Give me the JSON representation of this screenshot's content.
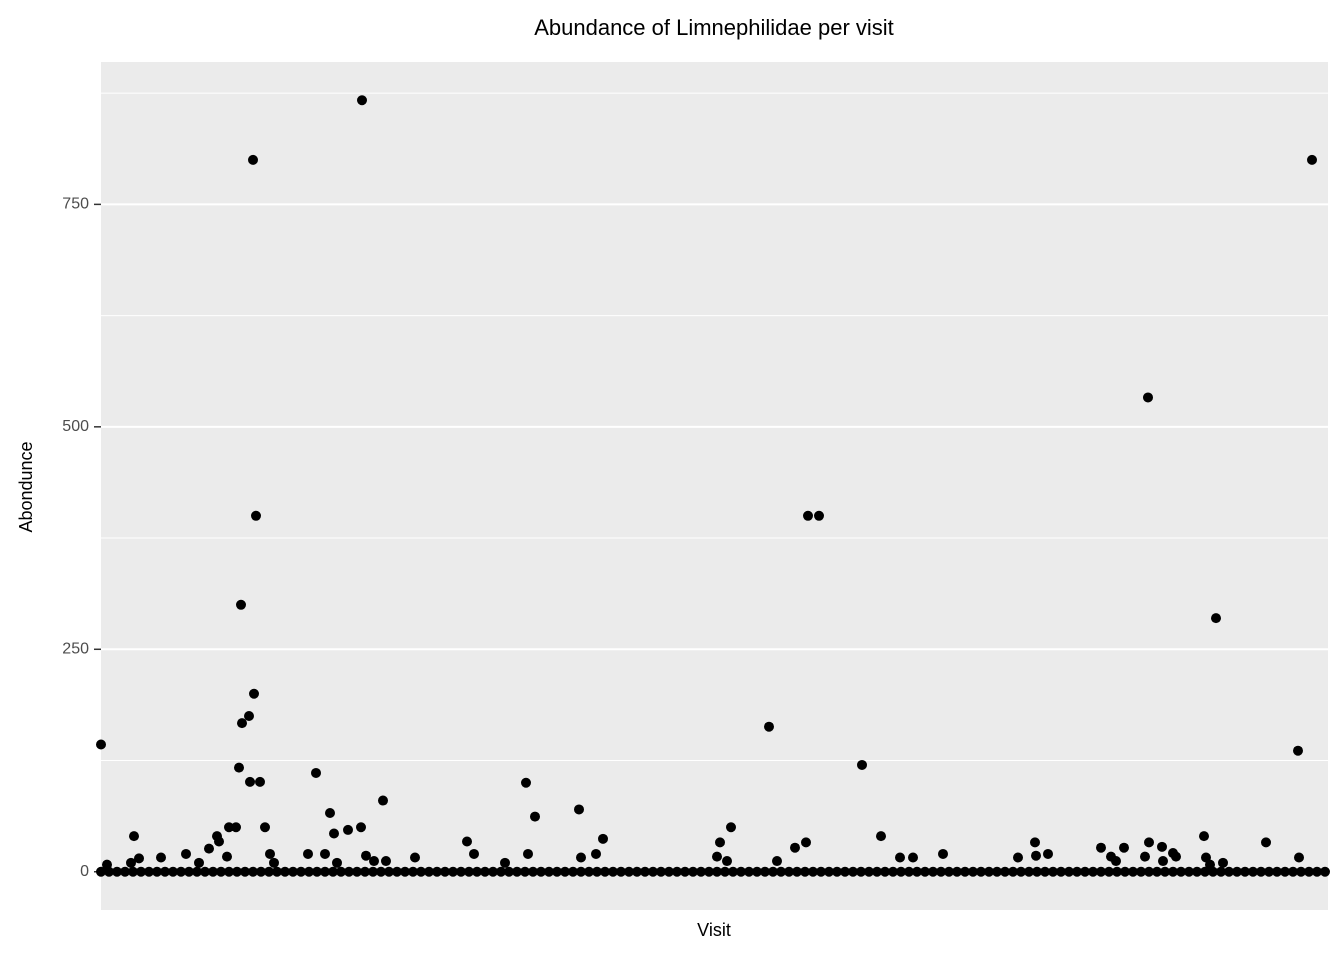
{
  "chart_data": {
    "type": "scatter",
    "title": "Abundance of Limnephilidae per visit",
    "x_label": "Visit",
    "y_label": "Abondunce",
    "color": "#000000",
    "grid": true,
    "xlim": [
      0,
      1227
    ],
    "ylim": [
      -43,
      910
    ],
    "yticks": [
      0,
      250,
      500,
      750
    ],
    "minor_yticks": [
      125,
      375,
      625,
      875
    ],
    "x": [
      0,
      152,
      261,
      1211,
      1047,
      155,
      707,
      718,
      140,
      1115,
      153,
      148,
      141,
      668,
      761,
      138,
      215,
      1197,
      149,
      159,
      425,
      282,
      478,
      229,
      434,
      128,
      135,
      164,
      260,
      630,
      247,
      233,
      33,
      116,
      780,
      1103,
      502,
      366,
      619,
      705,
      934,
      1048,
      1165,
      118,
      108,
      694,
      1000,
      1023,
      1061,
      1072,
      85,
      373,
      207,
      224,
      427,
      495,
      842,
      947,
      935,
      169,
      265,
      126,
      616,
      1010,
      1044,
      1075,
      60,
      480,
      799,
      812,
      917,
      1198,
      314,
      1105,
      6,
      38,
      30,
      98,
      173,
      285,
      404,
      626,
      676,
      1015,
      1109,
      1122,
      1062,
      273,
      236,
      0,
      8,
      16,
      24,
      32,
      40,
      48,
      56,
      64,
      72,
      80,
      88,
      96,
      104,
      112,
      120,
      128,
      136,
      144,
      152,
      160,
      168,
      176,
      184,
      192,
      200,
      208,
      216,
      224,
      232,
      240,
      248,
      256,
      264,
      272,
      280,
      288,
      296,
      304,
      312,
      320,
      328,
      336,
      344,
      352,
      360,
      368,
      376,
      384,
      392,
      400,
      408,
      416,
      424,
      432,
      440,
      448,
      456,
      464,
      472,
      480,
      488,
      496,
      504,
      512,
      520,
      528,
      536,
      544,
      552,
      560,
      568,
      576,
      584,
      592,
      600,
      608,
      616,
      624,
      632,
      640,
      648,
      656,
      664,
      672,
      680,
      688,
      696,
      704,
      712,
      720,
      728,
      736,
      744,
      752,
      760,
      768,
      776,
      784,
      792,
      800,
      808,
      816,
      824,
      832,
      840,
      848,
      856,
      864,
      872,
      880,
      888,
      896,
      904,
      912,
      920,
      928,
      936,
      944,
      952,
      960,
      968,
      976,
      984,
      992,
      1000,
      1008,
      1016,
      1024,
      1032,
      1040,
      1048,
      1056,
      1064,
      1072,
      1080,
      1088,
      1096,
      1104,
      1112,
      1120,
      1128,
      1136,
      1144,
      1152,
      1160,
      1168,
      1176,
      1184,
      1192,
      1200,
      1208,
      1216,
      1224
    ],
    "values": [
      143,
      800,
      867,
      800,
      533,
      400,
      400,
      400,
      300,
      285,
      200,
      175,
      167,
      163,
      120,
      117,
      111,
      136,
      101,
      101,
      100,
      80,
      70,
      66,
      62,
      50,
      50,
      50,
      50,
      50,
      47,
      43,
      40,
      40,
      40,
      40,
      37,
      34,
      33,
      33,
      33,
      33,
      33,
      34,
      26,
      27,
      27,
      27,
      28,
      21,
      20,
      20,
      20,
      20,
      20,
      20,
      20,
      20,
      18,
      20,
      18,
      17,
      17,
      17,
      17,
      17,
      16,
      16,
      16,
      16,
      16,
      16,
      16,
      16,
      8,
      15,
      10,
      10,
      10,
      12,
      10,
      12,
      12,
      12,
      8,
      10,
      12,
      12,
      10,
      0,
      0,
      0,
      0,
      0,
      0,
      0,
      0,
      0,
      0,
      0,
      0,
      0,
      0,
      0,
      0,
      0,
      0,
      0,
      0,
      0,
      0,
      0,
      0,
      0,
      0,
      0,
      0,
      0,
      0,
      0,
      0,
      0,
      0,
      0,
      0,
      0,
      0,
      0,
      0,
      0,
      0,
      0,
      0,
      0,
      0,
      0,
      0,
      0,
      0,
      0,
      0,
      0,
      0,
      0,
      0,
      0,
      0,
      0,
      0,
      0,
      0,
      0,
      0,
      0,
      0,
      0,
      0,
      0,
      0,
      0,
      0,
      0,
      0,
      0,
      0,
      0,
      0,
      0,
      0,
      0,
      0,
      0,
      0,
      0,
      0,
      0,
      0,
      0,
      0,
      0,
      0,
      0,
      0,
      0,
      0,
      0,
      0,
      0,
      0,
      0,
      0,
      0,
      0,
      0,
      0,
      0,
      0,
      0,
      0,
      0,
      0,
      0,
      0,
      0,
      0,
      0,
      0,
      0,
      0,
      0,
      0,
      0,
      0,
      0,
      0,
      0,
      0,
      0,
      0,
      0,
      0,
      0,
      0,
      0,
      0,
      0,
      0,
      0,
      0,
      0,
      0,
      0,
      0,
      0,
      0,
      0,
      0,
      0,
      0,
      0,
      0,
      0,
      0
    ]
  }
}
